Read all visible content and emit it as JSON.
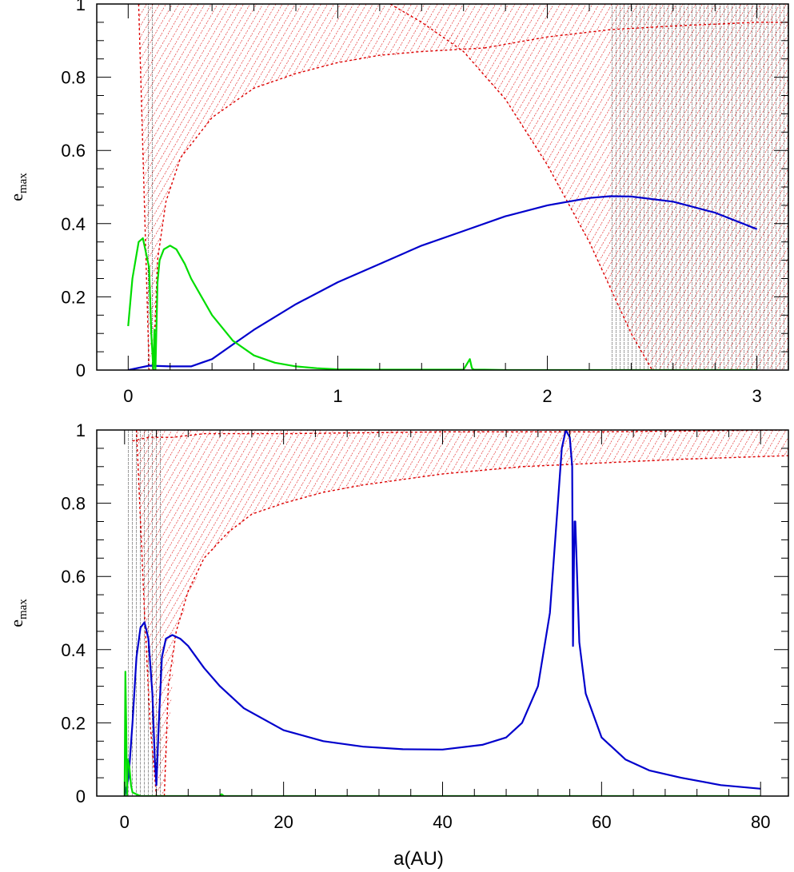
{
  "chart_data": [
    {
      "type": "line",
      "panel": "top",
      "xlabel": "",
      "ylabel": "e",
      "ylabel_sub": "max",
      "xlim": [
        -0.15,
        3.15
      ],
      "ylim": [
        0,
        1
      ],
      "xticks": [
        0,
        1,
        2,
        3
      ],
      "xtick_labels": [
        "0",
        "1",
        "2",
        "3"
      ],
      "yticks": [
        0,
        0.2,
        0.4,
        0.6,
        0.8,
        1
      ],
      "ytick_labels": [
        "0",
        "0.2",
        "0.4",
        "0.6",
        "0.8",
        "1"
      ],
      "grid": false,
      "series": [
        {
          "color": "#0000cc",
          "x": [
            0.0,
            0.1,
            0.2,
            0.3,
            0.4,
            0.5,
            0.6,
            0.8,
            1.0,
            1.2,
            1.4,
            1.6,
            1.8,
            2.0,
            2.2,
            2.3,
            2.4,
            2.6,
            2.8,
            3.0
          ],
          "y": [
            0.0,
            0.012,
            0.01,
            0.01,
            0.03,
            0.07,
            0.11,
            0.18,
            0.24,
            0.29,
            0.34,
            0.38,
            0.42,
            0.45,
            0.47,
            0.475,
            0.474,
            0.46,
            0.43,
            0.385
          ]
        },
        {
          "color": "#00dd00",
          "x": [
            0.0,
            0.02,
            0.05,
            0.07,
            0.1,
            0.11,
            0.12,
            0.125,
            0.13,
            0.14,
            0.15,
            0.17,
            0.2,
            0.23,
            0.27,
            0.3,
            0.35,
            0.4,
            0.5,
            0.6,
            0.7,
            0.8,
            0.9,
            1.0,
            1.2,
            1.4,
            1.6,
            1.63,
            1.64,
            1.65,
            1.7,
            1.8,
            2.0,
            2.5,
            3.0
          ],
          "y": [
            0.12,
            0.25,
            0.35,
            0.36,
            0.28,
            0.1,
            0.0,
            0.11,
            0.0,
            0.24,
            0.3,
            0.33,
            0.34,
            0.33,
            0.29,
            0.25,
            0.2,
            0.15,
            0.08,
            0.04,
            0.02,
            0.01,
            0.005,
            0.002,
            0.001,
            0.001,
            0.001,
            0.03,
            0.005,
            0.001,
            0.001,
            0.0,
            0.0,
            0.0,
            0.0
          ]
        }
      ],
      "boundaries": [
        {
          "color": "#dd0000",
          "x": [
            0.12,
            0.14,
            0.18,
            0.25,
            0.4,
            0.6,
            0.8,
            1.0,
            1.2,
            1.4,
            1.7
          ],
          "y": [
            0.0,
            0.3,
            0.46,
            0.58,
            0.69,
            0.77,
            0.81,
            0.84,
            0.86,
            0.87,
            0.88
          ]
        },
        {
          "color": "#dd0000",
          "x": [
            1.25,
            1.4,
            1.6,
            1.8,
            2.0,
            2.2,
            2.4,
            2.5
          ],
          "y": [
            1.0,
            0.95,
            0.87,
            0.74,
            0.56,
            0.35,
            0.1,
            0.0
          ]
        },
        {
          "color": "#dd0000",
          "x": [
            0.05,
            0.07,
            0.09,
            0.1
          ],
          "y": [
            1.0,
            0.6,
            0.2,
            0.0
          ]
        },
        {
          "color": "#dd0000",
          "x": [
            1.7,
            2.0,
            2.3,
            2.6,
            3.0,
            3.15
          ],
          "y": [
            0.88,
            0.91,
            0.93,
            0.94,
            0.95,
            0.95
          ]
        }
      ],
      "fills": [
        {
          "color": "#dd0000",
          "region": [
            [
              0.0,
              1.0
            ],
            [
              1.25,
              1.0
            ],
            [
              1.7,
              0.88
            ],
            [
              1.4,
              0.87
            ],
            [
              1.0,
              0.84
            ],
            [
              0.6,
              0.77
            ],
            [
              0.4,
              0.69
            ],
            [
              0.25,
              0.58
            ],
            [
              0.18,
              0.46
            ],
            [
              0.14,
              0.3
            ],
            [
              0.12,
              0.0
            ],
            [
              0.1,
              0.0
            ],
            [
              0.05,
              1.0
            ]
          ]
        },
        {
          "color": "#dd0000",
          "region": [
            [
              1.25,
              1.0
            ],
            [
              3.15,
              1.0
            ],
            [
              3.15,
              0.0
            ],
            [
              2.5,
              0.0
            ],
            [
              2.4,
              0.1
            ],
            [
              2.2,
              0.35
            ],
            [
              2.0,
              0.56
            ],
            [
              1.8,
              0.74
            ],
            [
              1.6,
              0.87
            ],
            [
              1.4,
              0.95
            ]
          ]
        },
        {
          "color": "#000000",
          "region": [
            [
              0.09,
              1.0
            ],
            [
              0.13,
              1.0
            ],
            [
              0.13,
              0.0
            ],
            [
              0.09,
              0.0
            ]
          ]
        },
        {
          "color": "#000000",
          "region": [
            [
              2.3,
              1.0
            ],
            [
              3.15,
              1.0
            ],
            [
              3.15,
              0.0
            ],
            [
              2.3,
              0.0
            ]
          ]
        }
      ]
    },
    {
      "type": "line",
      "panel": "bottom",
      "xlabel": "a(AU)",
      "ylabel": "e",
      "ylabel_sub": "max",
      "xlim": [
        -3.5,
        83.5
      ],
      "ylim": [
        0,
        1
      ],
      "xticks": [
        0,
        20,
        40,
        60,
        80
      ],
      "xtick_labels": [
        "0",
        "20",
        "40",
        "60",
        "80"
      ],
      "yticks": [
        0,
        0.2,
        0.4,
        0.6,
        0.8,
        1
      ],
      "ytick_labels": [
        "0",
        "0.2",
        "0.4",
        "0.6",
        "0.8",
        "1"
      ],
      "grid": false,
      "series": [
        {
          "color": "#0000cc",
          "x": [
            0.0,
            0.5,
            1.0,
            1.5,
            2.0,
            2.5,
            3.0,
            3.5,
            3.8,
            4.0,
            4.3,
            4.7,
            5.2,
            6.0,
            7.0,
            8.0,
            10.0,
            12.0,
            15.0,
            20.0,
            25.0,
            30.0,
            35.0,
            40.0,
            45.0,
            48.0,
            50.0,
            52.0,
            53.5,
            54.5,
            55.0,
            55.5,
            56.0,
            56.3,
            56.4,
            56.5,
            56.6,
            56.7,
            57.2,
            58.0,
            60.0,
            63.0,
            66.0,
            70.0,
            75.0,
            80.0
          ],
          "y": [
            0.0,
            0.05,
            0.2,
            0.38,
            0.46,
            0.475,
            0.43,
            0.28,
            0.1,
            0.03,
            0.2,
            0.38,
            0.43,
            0.44,
            0.43,
            0.41,
            0.35,
            0.3,
            0.24,
            0.18,
            0.15,
            0.135,
            0.128,
            0.127,
            0.14,
            0.16,
            0.2,
            0.3,
            0.5,
            0.8,
            0.95,
            1.0,
            0.98,
            0.9,
            0.41,
            0.6,
            0.75,
            0.75,
            0.42,
            0.28,
            0.16,
            0.1,
            0.07,
            0.05,
            0.03,
            0.02
          ]
        },
        {
          "color": "#00dd00",
          "x": [
            0.0,
            0.1,
            0.2,
            0.3,
            0.4,
            0.6,
            0.8,
            1.0,
            1.5,
            2.0,
            5.0,
            12.0,
            12.2,
            12.5,
            20.0,
            40.0,
            60.0,
            80.0
          ],
          "y": [
            0.0,
            0.34,
            0.2,
            0.0,
            0.1,
            0.08,
            0.03,
            0.01,
            0.005,
            0.0,
            0.0,
            0.0,
            0.005,
            0.0,
            0.0,
            0.0,
            0.0,
            0.0
          ]
        }
      ],
      "boundaries": [
        {
          "color": "#dd0000",
          "x": [
            5.0,
            5.5,
            6.5,
            8.0,
            10.0,
            13.0,
            16.0,
            20.0,
            25.0,
            30.0,
            40.0,
            50.0,
            60.0,
            70.0,
            83.5
          ],
          "y": [
            0.0,
            0.3,
            0.45,
            0.56,
            0.65,
            0.72,
            0.77,
            0.8,
            0.83,
            0.85,
            0.88,
            0.9,
            0.91,
            0.92,
            0.93
          ]
        },
        {
          "color": "#dd0000",
          "x": [
            1.0,
            3.0,
            6.0,
            10.0,
            20.0,
            40.0,
            60.0,
            83.5
          ],
          "y": [
            0.97,
            0.98,
            0.98,
            0.99,
            0.99,
            0.995,
            0.995,
            1.0
          ]
        },
        {
          "color": "#dd0000",
          "x": [
            1.5,
            2.5,
            3.2,
            4.0
          ],
          "y": [
            1.0,
            0.5,
            0.2,
            0.0
          ]
        }
      ],
      "fills": [
        {
          "color": "#dd0000",
          "region": [
            [
              0.5,
              1.0
            ],
            [
              83.5,
              1.0
            ],
            [
              83.5,
              0.93
            ],
            [
              60.0,
              0.91
            ],
            [
              40.0,
              0.88
            ],
            [
              25.0,
              0.83
            ],
            [
              16.0,
              0.77
            ],
            [
              10.0,
              0.65
            ],
            [
              6.5,
              0.45
            ],
            [
              5.0,
              0.0
            ],
            [
              4.0,
              0.0
            ],
            [
              3.2,
              0.2
            ],
            [
              2.5,
              0.5
            ],
            [
              1.5,
              1.0
            ]
          ]
        },
        {
          "color": "#000000",
          "region": [
            [
              0.2,
              1.0
            ],
            [
              4.8,
              1.0
            ],
            [
              4.8,
              0.0
            ],
            [
              0.2,
              0.0
            ]
          ]
        }
      ]
    }
  ]
}
